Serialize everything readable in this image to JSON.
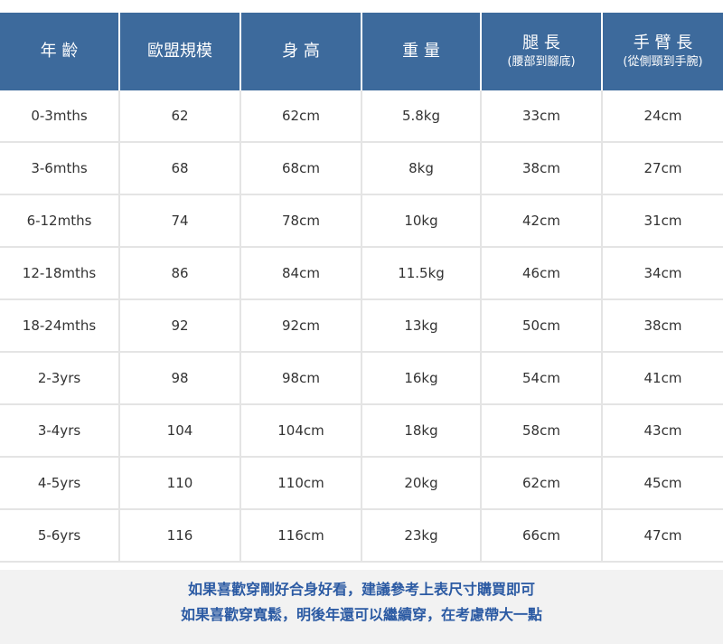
{
  "table": {
    "header": [
      {
        "label": "年 齡"
      },
      {
        "label": "歐盟規模"
      },
      {
        "label": "身 高"
      },
      {
        "label": "重 量"
      },
      {
        "label": "腿 長",
        "sublabel": "(腰部到腳底)"
      },
      {
        "label": "手 臂 長",
        "sublabel": "(從側頸到手腕)"
      }
    ],
    "rows": [
      [
        "0-3mths",
        "62",
        "62cm",
        "5.8kg",
        "33cm",
        "24cm"
      ],
      [
        "3-6mths",
        "68",
        "68cm",
        "8kg",
        "38cm",
        "27cm"
      ],
      [
        "6-12mths",
        "74",
        "78cm",
        "10kg",
        "42cm",
        "31cm"
      ],
      [
        "12-18mths",
        "86",
        "84cm",
        "11.5kg",
        "46cm",
        "34cm"
      ],
      [
        "18-24mths",
        "92",
        "92cm",
        "13kg",
        "50cm",
        "38cm"
      ],
      [
        "2-3yrs",
        "98",
        "98cm",
        "16kg",
        "54cm",
        "41cm"
      ],
      [
        "3-4yrs",
        "104",
        "104cm",
        "18kg",
        "58cm",
        "43cm"
      ],
      [
        "4-5yrs",
        "110",
        "110cm",
        "20kg",
        "62cm",
        "45cm"
      ],
      [
        "5-6yrs",
        "116",
        "116cm",
        "23kg",
        "66cm",
        "47cm"
      ]
    ]
  },
  "notes": [
    "如果喜歡穿剛好合身好看，建議參考上表尺寸購買即可",
    "如果喜歡穿寬鬆，明後年還可以繼續穿，在考慮帶大一點"
  ]
}
